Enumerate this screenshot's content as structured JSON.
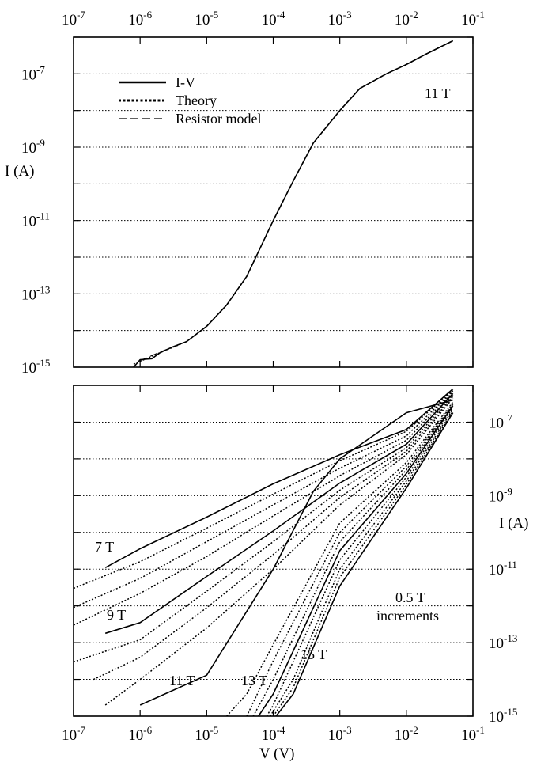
{
  "chart_data": [
    {
      "type": "line",
      "x_scale": "log",
      "y_scale": "log",
      "xlim": [
        1e-07,
        0.1
      ],
      "ylim": [
        1e-15,
        1e-06
      ],
      "x_tick_labels": [
        "10-7",
        "10-6",
        "10-5",
        "10-4",
        "10-3",
        "10-2",
        "10-1"
      ],
      "y_tick_labels": [
        "10-7",
        "10-9",
        "10-11",
        "10-13",
        "10-15"
      ],
      "ylabel": "I (A)",
      "xaxis_position": "top",
      "grid": "dotted horizontal",
      "legend_position": "top-left",
      "annotation": "11 T",
      "series": [
        {
          "name": "I-V",
          "style": "solid",
          "x": [
            8e-07,
            1e-06,
            1.5e-06,
            2e-06,
            3e-06,
            5e-06,
            1e-05,
            2e-05,
            4e-05,
            0.0001,
            0.0002,
            0.0004,
            0.001,
            0.002,
            0.005,
            0.01,
            0.02,
            0.05
          ],
          "y": [
            1e-15,
            1.6e-15,
            1.7e-15,
            2.5e-15,
            3.5e-15,
            5e-15,
            1.3e-14,
            5e-14,
            3e-13,
            1e-11,
            1.2e-10,
            1.3e-09,
            1e-08,
            4e-08,
            1e-07,
            1.8e-07,
            3.5e-07,
            8e-07
          ]
        },
        {
          "name": "Theory",
          "style": "dotted",
          "x": [
            8e-07,
            2e-06,
            5e-06,
            1e-05,
            2e-05,
            4e-05,
            0.0001,
            0.0002,
            0.0004,
            0.001,
            0.002,
            0.005,
            0.01,
            0.02,
            0.05
          ],
          "y": [
            1.2e-15,
            2.5e-15,
            5e-15,
            1.3e-14,
            5e-14,
            3e-13,
            1e-11,
            1.2e-10,
            1.3e-09,
            1e-08,
            4e-08,
            1e-07,
            1.8e-07,
            3.5e-07,
            8e-07
          ]
        },
        {
          "name": "Resistor model",
          "style": "dashed",
          "x": [
            1e-06,
            2e-06,
            5e-06,
            1e-05,
            2e-05,
            4e-05,
            0.0001,
            0.0002,
            0.0004,
            0.001,
            0.002,
            0.005,
            0.01,
            0.02,
            0.05
          ],
          "y": [
            1.5e-15,
            2.6e-15,
            5e-15,
            1.3e-14,
            5e-14,
            3e-13,
            1e-11,
            1.2e-10,
            1.3e-09,
            1e-08,
            4e-08,
            1e-07,
            1.8e-07,
            3.5e-07,
            8e-07
          ]
        }
      ]
    },
    {
      "type": "line",
      "x_scale": "log",
      "y_scale": "log",
      "xlim": [
        1e-07,
        0.1
      ],
      "ylim": [
        1e-15,
        1e-06
      ],
      "x_tick_labels": [
        "10-7",
        "10-6",
        "10-5",
        "10-4",
        "10-3",
        "10-2",
        "10-1"
      ],
      "y_tick_labels": [
        "10-7",
        "10-9",
        "10-11",
        "10-13",
        "10-15"
      ],
      "xlabel": "V (V)",
      "ylabel": "I (A)",
      "yaxis_position": "right",
      "grid": "dotted horizontal",
      "annotations": [
        "7 T",
        "9 T",
        "11 T",
        "13 T",
        "15 T",
        "0.5 T",
        "increments"
      ],
      "field_step": 0.5,
      "series": [
        {
          "field": 7.0,
          "style": "solid",
          "x": [
            3e-07,
            1e-06,
            1e-05,
            0.0001,
            0.001,
            0.01,
            0.05
          ],
          "y": [
            1.1e-11,
            3.6e-11,
            2.6e-10,
            2.1e-09,
            1.3e-08,
            6.3e-08,
            8e-07
          ]
        },
        {
          "field": 7.5,
          "style": "dotted",
          "x": [
            1e-07,
            1e-06,
            1e-05,
            0.0001,
            0.001,
            0.01,
            0.05
          ],
          "y": [
            3e-12,
            1.6e-11,
            1.3e-10,
            1.1e-09,
            8.9e-09,
            5.6e-08,
            7.5e-07
          ]
        },
        {
          "field": 8.0,
          "style": "dotted",
          "x": [
            1e-07,
            1e-06,
            1e-05,
            0.0001,
            0.001,
            0.01,
            0.05
          ],
          "y": [
            9e-13,
            5.6e-12,
            5.6e-11,
            5.6e-10,
            5.6e-09,
            4.2e-08,
            7e-07
          ]
        },
        {
          "field": 8.5,
          "style": "dotted",
          "x": [
            1e-07,
            1e-06,
            1e-05,
            0.0001,
            0.001,
            0.01,
            0.05
          ],
          "y": [
            3e-13,
            2.2e-12,
            2.2e-11,
            2.8e-10,
            3.5e-09,
            3.2e-08,
            6.5e-07
          ]
        },
        {
          "field": 9.0,
          "style": "solid",
          "x": [
            3e-07,
            1e-06,
            1e-05,
            0.0001,
            0.001,
            0.01,
            0.05
          ],
          "y": [
            1.8e-13,
            3.5e-13,
            6.3e-12,
            1.1e-10,
            2.2e-09,
            2.5e-08,
            6e-07
          ]
        },
        {
          "field": 9.5,
          "style": "dotted",
          "x": [
            1e-07,
            1e-06,
            1e-05,
            0.0001,
            0.001,
            0.01,
            0.05
          ],
          "y": [
            3e-14,
            1.2e-13,
            2.5e-12,
            5.6e-11,
            1.4e-09,
            2e-08,
            5.5e-07
          ]
        },
        {
          "field": 10.0,
          "style": "dotted",
          "x": [
            2e-07,
            1e-06,
            1e-05,
            0.0001,
            0.001,
            0.01,
            0.05
          ],
          "y": [
            1e-14,
            4e-14,
            8.9e-13,
            2.5e-11,
            8.9e-10,
            1.6e-08,
            5e-07
          ]
        },
        {
          "field": 10.5,
          "style": "dotted",
          "x": [
            3e-07,
            1e-06,
            1e-05,
            0.0001,
            0.001,
            0.01,
            0.05
          ],
          "y": [
            2e-15,
            1e-14,
            2.5e-13,
            1e-11,
            5.6e-10,
            1.3e-08,
            4.5e-07
          ]
        },
        {
          "field": 11.0,
          "style": "solid",
          "x": [
            1e-06,
            1e-05,
            0.0001,
            0.0004,
            0.001,
            0.01,
            0.05
          ],
          "y": [
            2e-15,
            1.3e-14,
            1e-11,
            1.3e-09,
            1e-08,
            1.8e-07,
            4e-07
          ]
        },
        {
          "field": 11.5,
          "style": "dotted",
          "x": [
            2e-05,
            4e-05,
            0.0001,
            0.001,
            0.01,
            0.05
          ],
          "y": [
            1e-15,
            4e-15,
            8.9e-14,
            1.8e-10,
            7.9e-09,
            3.5e-07
          ]
        },
        {
          "field": 12.0,
          "style": "dotted",
          "x": [
            4e-05,
            0.0001,
            0.001,
            0.01,
            0.05
          ],
          "y": [
            1e-15,
            3.2e-14,
            1e-10,
            6.3e-09,
            3.2e-07
          ]
        },
        {
          "field": 12.5,
          "style": "dotted",
          "x": [
            5e-05,
            0.0001,
            0.001,
            0.01,
            0.05
          ],
          "y": [
            1e-15,
            1e-14,
            5.6e-11,
            5e-09,
            3e-07
          ]
        },
        {
          "field": 13.0,
          "style": "solid",
          "x": [
            6e-05,
            0.0001,
            0.001,
            0.01,
            0.05
          ],
          "y": [
            1e-15,
            4e-15,
            3.2e-11,
            4e-09,
            2.8e-07
          ]
        },
        {
          "field": 13.5,
          "style": "dotted",
          "x": [
            8e-05,
            0.0001,
            0.001,
            0.01,
            0.05
          ],
          "y": [
            1e-15,
            2e-15,
            1.8e-11,
            3.2e-09,
            2.5e-07
          ]
        },
        {
          "field": 14.0,
          "style": "dotted",
          "x": [
            9e-05,
            0.0002,
            0.001,
            0.01,
            0.05
          ],
          "y": [
            1e-15,
            1e-14,
            1e-11,
            2.5e-09,
            2.2e-07
          ]
        },
        {
          "field": 14.5,
          "style": "dotted",
          "x": [
            0.0001,
            0.0002,
            0.001,
            0.01,
            0.05
          ],
          "y": [
            1e-15,
            6e-15,
            6e-12,
            2e-09,
            2e-07
          ]
        },
        {
          "field": 15.0,
          "style": "solid",
          "x": [
            0.00011,
            0.0002,
            0.001,
            0.01,
            0.05
          ],
          "y": [
            1e-15,
            4e-15,
            3.5e-12,
            1.6e-09,
            1.8e-07
          ]
        }
      ]
    }
  ]
}
